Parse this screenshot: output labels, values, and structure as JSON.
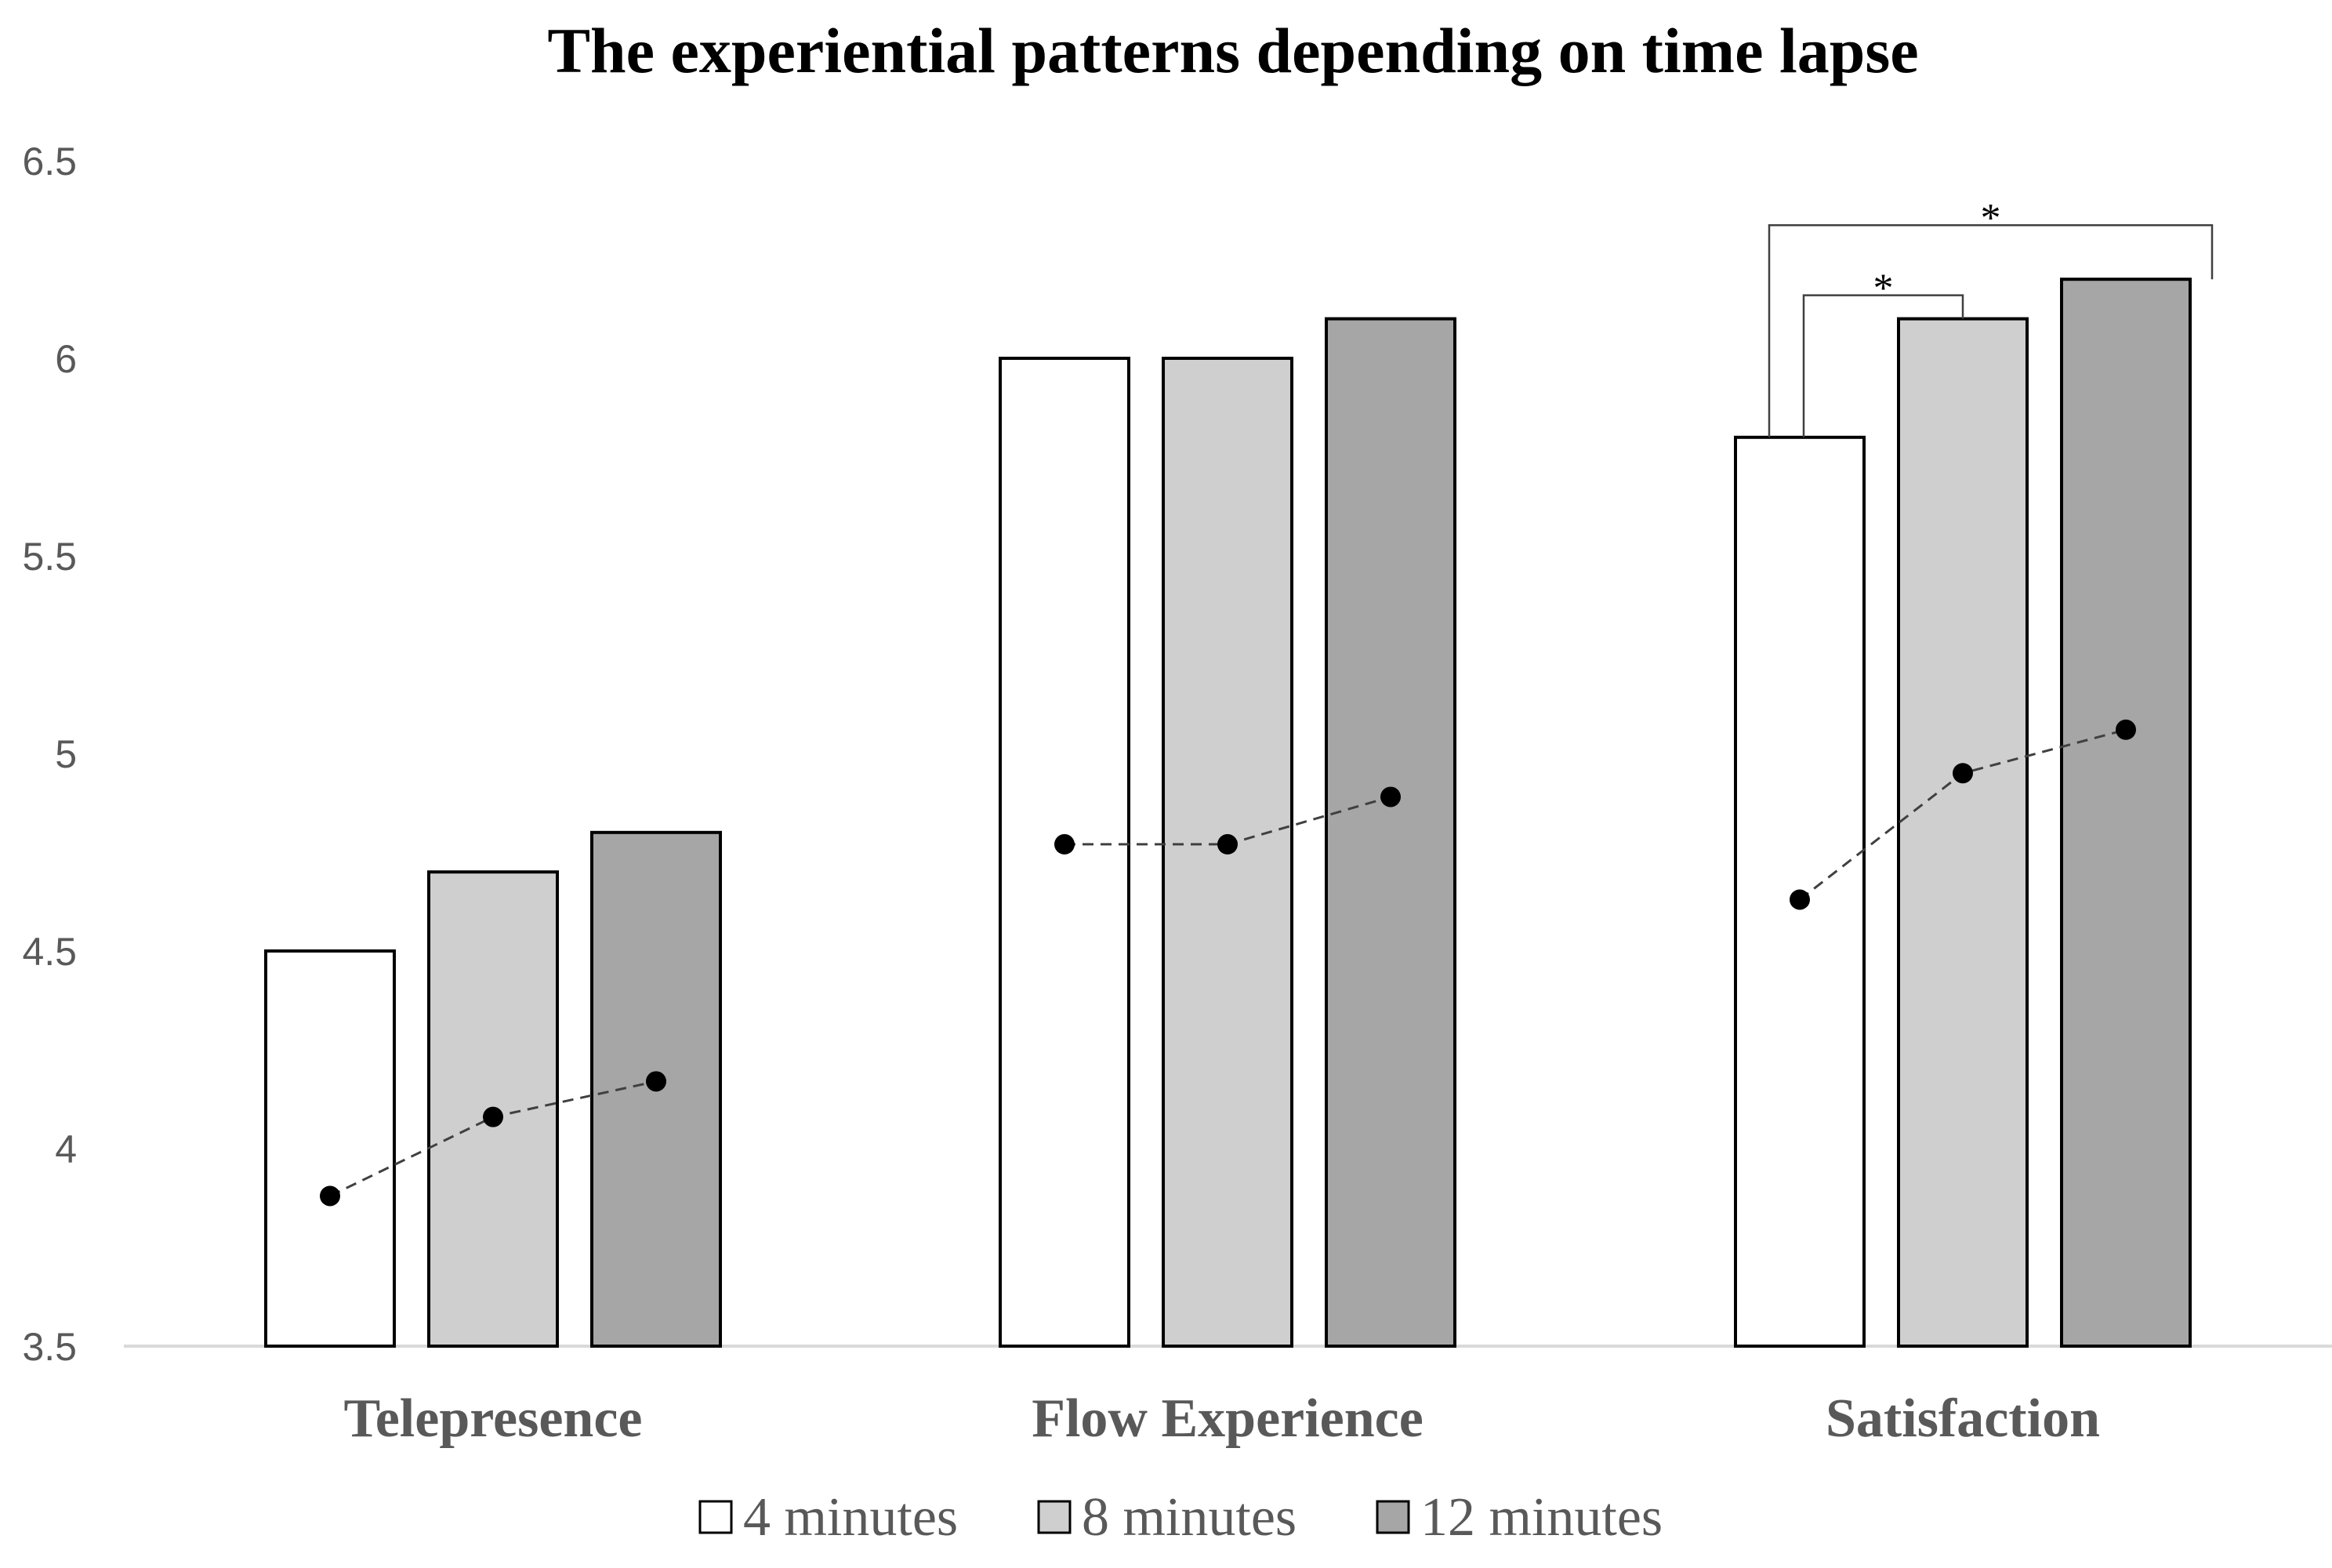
{
  "chart_data": {
    "type": "bar",
    "title": "The experiential patterns depending on time lapse",
    "xlabel": "",
    "ylabel": "",
    "categories": [
      "Telepresence",
      "Flow Experience",
      "Satisfaction"
    ],
    "ylim": [
      3.5,
      6.5
    ],
    "yticks": [
      "3.5",
      "4",
      "4.5",
      "5",
      "5.5",
      "6",
      "6.5"
    ],
    "series": [
      {
        "name": "4 minutes",
        "values": [
          4.5,
          6.0,
          5.8
        ],
        "color": "#ffffff"
      },
      {
        "name": "8 minutes",
        "values": [
          4.7,
          6.0,
          6.1
        ],
        "color": "#d0cfcf"
      },
      {
        "name": "12 minutes",
        "values": [
          4.8,
          6.1,
          6.2
        ],
        "color": "#a6a6a6"
      }
    ],
    "trend_points": [
      [
        3.88,
        4.08,
        4.17
      ],
      [
        4.77,
        4.77,
        4.89
      ],
      [
        4.63,
        4.95,
        5.06
      ]
    ],
    "significance": [
      {
        "category": "Satisfaction",
        "from": "4 minutes",
        "to": "8 minutes",
        "label": "*"
      },
      {
        "category": "Satisfaction",
        "from": "4 minutes",
        "to": "12 minutes",
        "label": "*"
      }
    ],
    "legend_position": "bottom-center",
    "grid": false
  }
}
